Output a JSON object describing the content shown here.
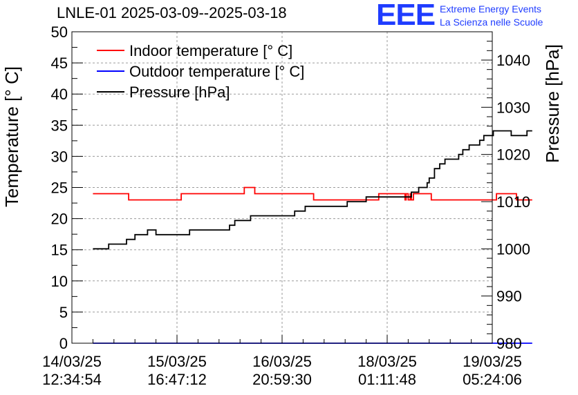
{
  "chart_data": {
    "type": "line",
    "title": "LNLE-01 2025-03-09--2025-03-18",
    "logo": {
      "mark": "EEE",
      "line1": "Extreme Energy Events",
      "line2": "La Scienza nelle Scuole",
      "color": "#1f3cff"
    },
    "xlabel": "",
    "ylabel_left": "Temperature [° C]",
    "ylabel_right": "Pressure [hPa]",
    "ylim_left": [
      0,
      50
    ],
    "ylim_right": [
      980,
      1046
    ],
    "yticks_left": [
      "0",
      "5",
      "10",
      "15",
      "20",
      "25",
      "30",
      "35",
      "40",
      "45",
      "50"
    ],
    "yticks_right": [
      "980",
      "990",
      "1000",
      "1010",
      "1020",
      "1030",
      "1040"
    ],
    "x_ticks": [
      {
        "date": "14/03/25",
        "time": "12:34:54"
      },
      {
        "date": "15/03/25",
        "time": "16:47:12"
      },
      {
        "date": "16/03/25",
        "time": "20:59:30"
      },
      {
        "date": "18/03/25",
        "time": "01:11:48"
      },
      {
        "date": "19/03/25",
        "time": "05:24:06"
      }
    ],
    "grid": true,
    "legend_position": "top-left",
    "series": [
      {
        "name": "Indoor temperature [° C]",
        "axis": "left",
        "color": "#ff0000",
        "x": [
          0.2,
          0.5,
          0.54,
          0.98,
          1.04,
          1.64,
          1.64,
          1.68,
          1.74,
          2.28,
          2.3,
          2.34,
          2.92,
          2.92,
          3.14,
          3.17,
          3.18,
          3.2,
          3.22,
          3.23,
          3.25,
          3.38,
          3.38,
          3.42,
          4.0,
          4.04,
          4.2,
          4.23,
          4.38
        ],
        "y": [
          24,
          24,
          23,
          23,
          24,
          24,
          25,
          25,
          24,
          24,
          23,
          23,
          23,
          24,
          24,
          23,
          24,
          23,
          24,
          23,
          24,
          24,
          24,
          23,
          23,
          24,
          24,
          23,
          23
        ]
      },
      {
        "name": "Outdoor temperature [° C]",
        "axis": "left",
        "color": "#0000ff",
        "x": [
          0.2,
          4.38
        ],
        "y": [
          0,
          0
        ]
      },
      {
        "name": "Pressure [hPa]",
        "axis": "right",
        "color": "#000000",
        "x": [
          0.2,
          0.33,
          0.35,
          0.48,
          0.52,
          0.6,
          0.65,
          0.72,
          0.75,
          0.8,
          0.85,
          1.05,
          1.12,
          1.45,
          1.5,
          1.55,
          1.58,
          1.7,
          1.85,
          2.0,
          2.05,
          2.12,
          2.22,
          2.5,
          2.55,
          2.62,
          2.68,
          2.74,
          2.8,
          2.9,
          2.93,
          3.0,
          3.07,
          3.12,
          3.14,
          3.2,
          3.23,
          3.3,
          3.32,
          3.38,
          3.4,
          3.45,
          3.5,
          3.55,
          3.6,
          3.68,
          3.72,
          3.78,
          3.83,
          3.88,
          3.92,
          3.97,
          4.01,
          4.05,
          4.15,
          4.18,
          4.2,
          4.3,
          4.33,
          4.38
        ],
        "y": [
          1000,
          1000,
          1001,
          1001,
          1002,
          1003,
          1003,
          1004,
          1004,
          1003,
          1003,
          1003,
          1004,
          1004,
          1005,
          1006,
          1006,
          1007,
          1007,
          1007,
          1007,
          1008,
          1009,
          1009,
          1009,
          1010,
          1010,
          1010,
          1011,
          1011,
          1011,
          1011,
          1011,
          1011,
          1011,
          1011,
          1012,
          1013,
          1013,
          1014,
          1015,
          1017,
          1018,
          1019,
          1019,
          1020,
          1021,
          1022,
          1022,
          1023,
          1024,
          1024,
          1025,
          1025,
          1025,
          1024,
          1024,
          1024,
          1025,
          1025
        ]
      }
    ]
  }
}
